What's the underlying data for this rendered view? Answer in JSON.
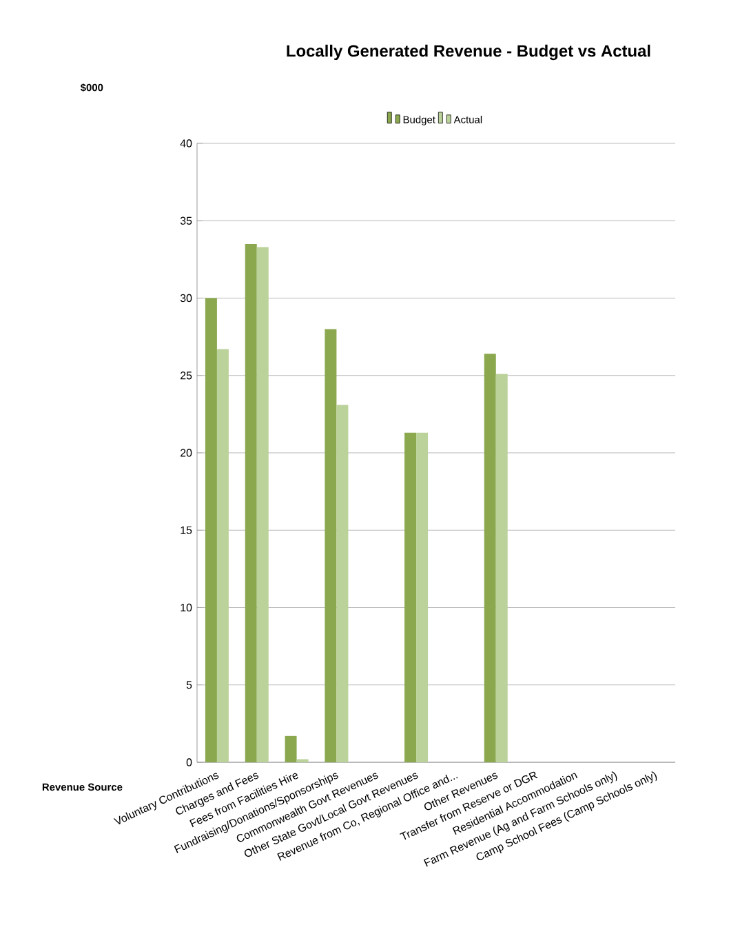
{
  "chart_data": {
    "type": "bar",
    "title": "Locally Generated Revenue - Budget vs Actual",
    "ylabel": "$000",
    "xlabel": "Revenue Source",
    "categories": [
      "Voluntary Contributions",
      "Charges and Fees",
      "Fees from Facilities Hire",
      "Fundraising/Donations/Sponsorships",
      "Commonwealth Govt Revenues",
      "Other State Govt/Local Govt Revenues",
      "Revenue from Co, Regional Office and...",
      "Other Revenues",
      "Transfer from Reserve or DGR",
      "Residential Accommodation",
      "Farm Revenue (Ag and Farm Schools only)",
      "Camp School Fees (Camp Schools only)"
    ],
    "series": [
      {
        "name": "Budget",
        "color": "#8ba84e",
        "values": [
          30.0,
          33.5,
          1.7,
          28.0,
          0,
          21.3,
          0,
          26.4,
          0,
          0,
          0,
          0
        ]
      },
      {
        "name": "Actual",
        "color": "#bcd29b",
        "values": [
          26.7,
          33.3,
          0.2,
          23.1,
          0,
          21.3,
          0,
          25.1,
          0,
          0,
          0,
          0
        ]
      }
    ],
    "ylim": [
      0,
      40
    ],
    "yticks": [
      0,
      5,
      10,
      15,
      20,
      25,
      30,
      35,
      40
    ],
    "grid": "y",
    "legend": "top"
  }
}
